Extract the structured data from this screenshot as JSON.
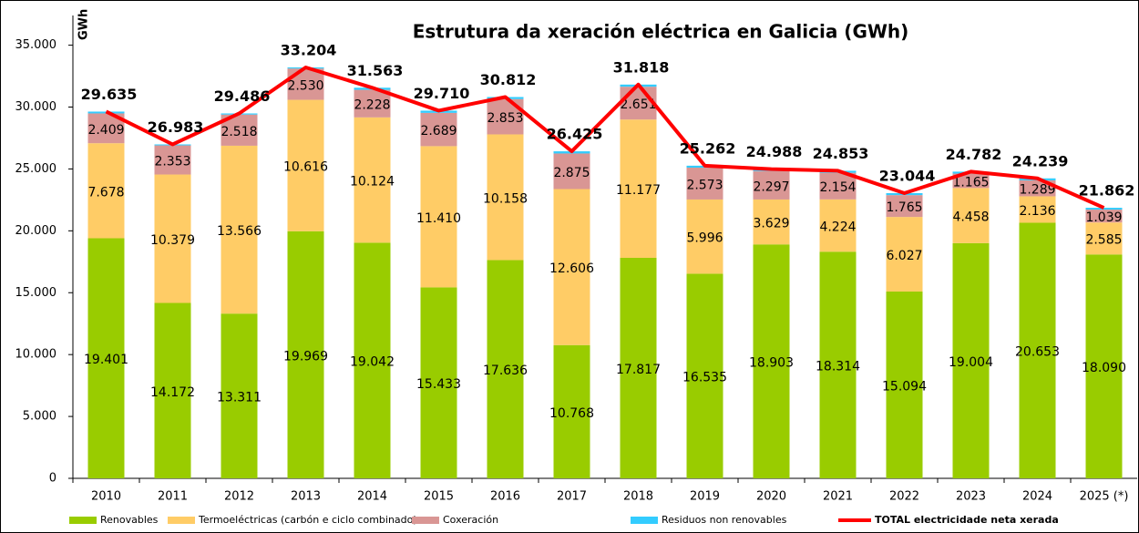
{
  "chart_data": {
    "type": "bar",
    "stacked": true,
    "title": "Estrutura da xeración eléctrica en Galicia (GWh)",
    "y_label": "GWh",
    "categories": [
      "2010",
      "2011",
      "2012",
      "2013",
      "2014",
      "2015",
      "2016",
      "2017",
      "2018",
      "2019",
      "2020",
      "2021",
      "2022",
      "2023",
      "2024",
      "2025 (*)"
    ],
    "series": [
      {
        "name": "Renovables",
        "color": "#99cc00",
        "values": [
          19401,
          14172,
          13311,
          19969,
          19042,
          15433,
          17636,
          10768,
          17817,
          16535,
          18903,
          18314,
          15094,
          19004,
          20653,
          18090
        ],
        "value_labels": [
          "19.401",
          "14.172",
          "13.311",
          "19.969",
          "19.042",
          "15.433",
          "17.636",
          "10.768",
          "17.817",
          "16.535",
          "18.903",
          "18.314",
          "15.094",
          "19.004",
          "20.653",
          "18.090"
        ]
      },
      {
        "name": "Termoeléctricas (carbón e ciclo combinado)",
        "color": "#ffcc66",
        "values": [
          7678,
          10379,
          13566,
          10616,
          10124,
          11410,
          10158,
          12606,
          11177,
          5996,
          3629,
          4224,
          6027,
          4458,
          2136,
          2585
        ],
        "value_labels": [
          "7.678",
          "10.379",
          "13.566",
          "10.616",
          "10.124",
          "11.410",
          "10.158",
          "12.606",
          "11.177",
          "5.996",
          "3.629",
          "4.224",
          "6.027",
          "4.458",
          "2.136",
          "2.585"
        ]
      },
      {
        "name": "Coxeración",
        "color": "#d99694",
        "values": [
          2409,
          2353,
          2518,
          2530,
          2228,
          2689,
          2853,
          2875,
          2651,
          2573,
          2297,
          2154,
          1765,
          1165,
          1289,
          1039
        ],
        "value_labels": [
          "2.409",
          "2.353",
          "2.518",
          "2.530",
          "2.228",
          "2.689",
          "2.853",
          "2.875",
          "2.651",
          "2.573",
          "2.297",
          "2.154",
          "1.765",
          "1.165",
          "1.289",
          "1.039"
        ]
      },
      {
        "name": "Residuos non renovables",
        "color": "#33ccff",
        "values": [
          147,
          79,
          91,
          89,
          169,
          178,
          165,
          176,
          173,
          158,
          159,
          161,
          158,
          155,
          161,
          148
        ]
      },
      {
        "name": "TOTAL electricidade neta xerada",
        "color": "#ff0000",
        "type": "line",
        "values": [
          29635,
          26983,
          29486,
          33204,
          31563,
          29710,
          30812,
          26425,
          31818,
          25262,
          24988,
          24853,
          23044,
          24782,
          24239,
          21862
        ],
        "value_labels": [
          "29.635",
          "26.983",
          "29.486",
          "33.204",
          "31.563",
          "29.710",
          "30.812",
          "26.425",
          "31.818",
          "25.262",
          "24.988",
          "24.853",
          "23.044",
          "24.782",
          "24.239",
          "21.862"
        ]
      }
    ],
    "ylim": [
      0,
      37400
    ],
    "yticks": [
      0,
      {
        "value": 5000,
        "label": "5.000"
      },
      {
        "value": 10000,
        "label": "10.000"
      },
      {
        "value": 15000,
        "label": "15.000"
      },
      {
        "value": 20000,
        "label": "20.000"
      },
      {
        "value": 25000,
        "label": "25.000"
      },
      {
        "value": 30000,
        "label": "30.000"
      },
      {
        "value": 35000,
        "label": "35.000"
      }
    ],
    "legend": "bottom"
  }
}
